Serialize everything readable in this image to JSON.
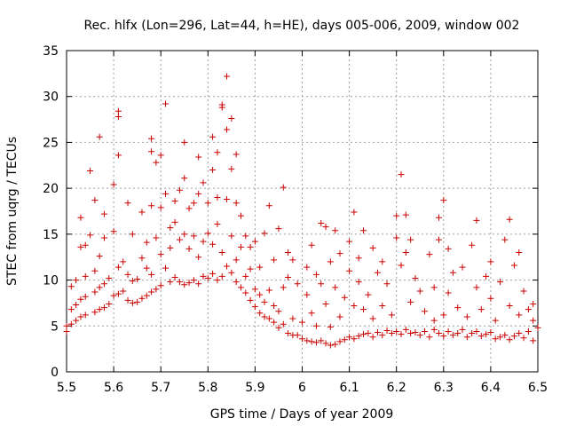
{
  "chart_data": {
    "type": "scatter",
    "title": "Rec. hlfx (Lon=296, Lat=44, h=HE), days 005-006, 2009, window 002",
    "xlabel": "GPS time / Days of year 2009",
    "ylabel": "STEC from uqrg / TECUs",
    "xlim": [
      5.5,
      6.5
    ],
    "ylim": [
      0,
      35
    ],
    "xticks": [
      "5.5",
      "5.6",
      "5.7",
      "5.8",
      "5.9",
      "6",
      "6.1",
      "6.2",
      "6.3",
      "6.4",
      "6.5"
    ],
    "yticks": [
      "0",
      "5",
      "10",
      "15",
      "20",
      "25",
      "30",
      "35"
    ],
    "grid": true,
    "marker": "plus",
    "color": "#cc0000",
    "series": [
      {
        "name": "STEC",
        "points": [
          [
            5.5,
            4.4
          ],
          [
            5.5,
            5.0
          ],
          [
            5.51,
            5.2
          ],
          [
            5.51,
            6.8
          ],
          [
            5.51,
            9.3
          ],
          [
            5.52,
            5.6
          ],
          [
            5.52,
            7.3
          ],
          [
            5.52,
            10.0
          ],
          [
            5.53,
            6.0
          ],
          [
            5.53,
            7.9
          ],
          [
            5.53,
            13.6
          ],
          [
            5.53,
            16.8
          ],
          [
            5.54,
            6.2
          ],
          [
            5.54,
            8.2
          ],
          [
            5.54,
            10.4
          ],
          [
            5.54,
            13.8
          ],
          [
            5.55,
            21.9
          ],
          [
            5.55,
            14.9
          ],
          [
            5.56,
            6.5
          ],
          [
            5.56,
            8.7
          ],
          [
            5.56,
            11.0
          ],
          [
            5.56,
            18.7
          ],
          [
            5.57,
            6.8
          ],
          [
            5.57,
            9.2
          ],
          [
            5.57,
            12.6
          ],
          [
            5.57,
            25.6
          ],
          [
            5.58,
            7.0
          ],
          [
            5.58,
            9.6
          ],
          [
            5.58,
            14.6
          ],
          [
            5.58,
            17.2
          ],
          [
            5.59,
            7.4
          ],
          [
            5.59,
            10.2
          ],
          [
            5.6,
            8.3
          ],
          [
            5.6,
            20.4
          ],
          [
            5.6,
            15.3
          ],
          [
            5.61,
            8.5
          ],
          [
            5.61,
            11.4
          ],
          [
            5.61,
            27.8
          ],
          [
            5.61,
            28.4
          ],
          [
            5.61,
            23.6
          ],
          [
            5.62,
            8.8
          ],
          [
            5.62,
            12.0
          ],
          [
            5.63,
            7.8
          ],
          [
            5.63,
            10.6
          ],
          [
            5.63,
            18.4
          ],
          [
            5.64,
            7.5
          ],
          [
            5.64,
            9.9
          ],
          [
            5.64,
            15.0
          ],
          [
            5.65,
            7.6
          ],
          [
            5.65,
            10.1
          ],
          [
            5.66,
            8.0
          ],
          [
            5.66,
            12.4
          ],
          [
            5.66,
            17.4
          ],
          [
            5.67,
            8.3
          ],
          [
            5.67,
            11.3
          ],
          [
            5.67,
            14.1
          ],
          [
            5.68,
            8.7
          ],
          [
            5.68,
            10.6
          ],
          [
            5.68,
            18.1
          ],
          [
            5.68,
            25.4
          ],
          [
            5.68,
            24.0
          ],
          [
            5.69,
            9.0
          ],
          [
            5.69,
            14.6
          ],
          [
            5.69,
            22.8
          ],
          [
            5.7,
            9.4
          ],
          [
            5.7,
            12.8
          ],
          [
            5.7,
            17.9
          ],
          [
            5.7,
            23.6
          ],
          [
            5.71,
            29.2
          ],
          [
            5.71,
            19.4
          ],
          [
            5.71,
            11.3
          ],
          [
            5.72,
            9.8
          ],
          [
            5.72,
            13.5
          ],
          [
            5.72,
            15.7
          ],
          [
            5.73,
            10.3
          ],
          [
            5.73,
            16.3
          ],
          [
            5.73,
            18.6
          ],
          [
            5.74,
            9.8
          ],
          [
            5.74,
            14.4
          ],
          [
            5.74,
            19.8
          ],
          [
            5.75,
            9.5
          ],
          [
            5.75,
            15.0
          ],
          [
            5.75,
            21.1
          ],
          [
            5.75,
            25.0
          ],
          [
            5.76,
            9.7
          ],
          [
            5.76,
            13.4
          ],
          [
            5.76,
            17.8
          ],
          [
            5.77,
            10.0
          ],
          [
            5.77,
            14.8
          ],
          [
            5.77,
            18.4
          ],
          [
            5.78,
            9.6
          ],
          [
            5.78,
            12.5
          ],
          [
            5.78,
            19.4
          ],
          [
            5.78,
            23.4
          ],
          [
            5.79,
            10.4
          ],
          [
            5.79,
            14.2
          ],
          [
            5.79,
            20.6
          ],
          [
            5.8,
            10.2
          ],
          [
            5.8,
            15.1
          ],
          [
            5.8,
            18.4
          ],
          [
            5.81,
            10.7
          ],
          [
            5.81,
            13.9
          ],
          [
            5.81,
            22.0
          ],
          [
            5.81,
            25.6
          ],
          [
            5.82,
            10.0
          ],
          [
            5.82,
            16.1
          ],
          [
            5.82,
            19.0
          ],
          [
            5.82,
            23.9
          ],
          [
            5.83,
            28.8
          ],
          [
            5.83,
            29.1
          ],
          [
            5.83,
            10.4
          ],
          [
            5.83,
            13.0
          ],
          [
            5.84,
            32.2
          ],
          [
            5.84,
            26.4
          ],
          [
            5.84,
            18.8
          ],
          [
            5.84,
            11.5
          ],
          [
            5.85,
            10.8
          ],
          [
            5.85,
            14.8
          ],
          [
            5.85,
            27.6
          ],
          [
            5.85,
            22.1
          ],
          [
            5.86,
            9.8
          ],
          [
            5.86,
            12.2
          ],
          [
            5.86,
            18.4
          ],
          [
            5.86,
            23.7
          ],
          [
            5.87,
            9.2
          ],
          [
            5.87,
            13.6
          ],
          [
            5.87,
            17.0
          ],
          [
            5.88,
            8.6
          ],
          [
            5.88,
            10.4
          ],
          [
            5.88,
            14.8
          ],
          [
            5.89,
            7.8
          ],
          [
            5.89,
            11.2
          ],
          [
            5.89,
            13.6
          ],
          [
            5.9,
            7.1
          ],
          [
            5.9,
            9.0
          ],
          [
            5.9,
            14.2
          ],
          [
            5.91,
            6.4
          ],
          [
            5.91,
            8.4
          ],
          [
            5.91,
            11.4
          ],
          [
            5.92,
            6.0
          ],
          [
            5.92,
            7.6
          ],
          [
            5.92,
            15.1
          ],
          [
            5.93,
            5.8
          ],
          [
            5.93,
            8.9
          ],
          [
            5.93,
            18.1
          ],
          [
            5.94,
            5.4
          ],
          [
            5.94,
            7.2
          ],
          [
            5.94,
            12.2
          ],
          [
            5.95,
            4.8
          ],
          [
            5.95,
            6.6
          ],
          [
            5.95,
            15.6
          ],
          [
            5.96,
            20.1
          ],
          [
            5.96,
            5.2
          ],
          [
            5.96,
            9.2
          ],
          [
            5.97,
            4.2
          ],
          [
            5.97,
            10.3
          ],
          [
            5.97,
            13.0
          ],
          [
            5.98,
            4.0
          ],
          [
            5.98,
            5.8
          ],
          [
            5.98,
            12.2
          ],
          [
            5.99,
            4.0
          ],
          [
            5.99,
            9.6
          ],
          [
            6.0,
            3.6
          ],
          [
            6.0,
            5.4
          ],
          [
            6.01,
            3.4
          ],
          [
            6.01,
            11.4
          ],
          [
            6.01,
            8.4
          ],
          [
            6.02,
            3.3
          ],
          [
            6.02,
            6.4
          ],
          [
            6.02,
            13.8
          ],
          [
            6.03,
            3.2
          ],
          [
            6.03,
            5.0
          ],
          [
            6.03,
            10.6
          ],
          [
            6.04,
            3.4
          ],
          [
            6.04,
            9.6
          ],
          [
            6.04,
            16.2
          ],
          [
            6.05,
            3.1
          ],
          [
            6.05,
            7.4
          ],
          [
            6.05,
            15.8
          ],
          [
            6.06,
            2.9
          ],
          [
            6.06,
            4.9
          ],
          [
            6.06,
            12.0
          ],
          [
            6.07,
            3.0
          ],
          [
            6.07,
            9.2
          ],
          [
            6.07,
            15.4
          ],
          [
            6.08,
            3.3
          ],
          [
            6.08,
            6.0
          ],
          [
            6.08,
            12.9
          ],
          [
            6.09,
            3.5
          ],
          [
            6.09,
            8.1
          ],
          [
            6.1,
            3.8
          ],
          [
            6.1,
            14.2
          ],
          [
            6.1,
            11.0
          ],
          [
            6.11,
            3.6
          ],
          [
            6.11,
            17.4
          ],
          [
            6.11,
            7.2
          ],
          [
            6.12,
            3.9
          ],
          [
            6.12,
            9.8
          ],
          [
            6.12,
            12.4
          ],
          [
            6.13,
            4.1
          ],
          [
            6.13,
            6.8
          ],
          [
            6.13,
            15.4
          ],
          [
            6.14,
            4.2
          ],
          [
            6.14,
            8.4
          ],
          [
            6.15,
            3.8
          ],
          [
            6.15,
            5.8
          ],
          [
            6.15,
            13.5
          ],
          [
            6.16,
            4.3
          ],
          [
            6.16,
            10.8
          ],
          [
            6.17,
            4.0
          ],
          [
            6.17,
            7.2
          ],
          [
            6.17,
            12.0
          ],
          [
            6.18,
            4.5
          ],
          [
            6.18,
            9.6
          ],
          [
            6.19,
            4.2
          ],
          [
            6.19,
            6.2
          ],
          [
            6.2,
            4.4
          ],
          [
            6.2,
            14.6
          ],
          [
            6.2,
            17.0
          ],
          [
            6.21,
            21.5
          ],
          [
            6.21,
            4.1
          ],
          [
            6.21,
            11.6
          ],
          [
            6.22,
            4.6
          ],
          [
            6.22,
            17.1
          ],
          [
            6.22,
            13.0
          ],
          [
            6.23,
            4.2
          ],
          [
            6.23,
            7.6
          ],
          [
            6.23,
            14.4
          ],
          [
            6.24,
            4.3
          ],
          [
            6.24,
            10.2
          ],
          [
            6.25,
            4.0
          ],
          [
            6.25,
            8.8
          ],
          [
            6.26,
            4.4
          ],
          [
            6.26,
            6.6
          ],
          [
            6.27,
            3.8
          ],
          [
            6.27,
            12.8
          ],
          [
            6.28,
            4.6
          ],
          [
            6.28,
            5.6
          ],
          [
            6.28,
            9.2
          ],
          [
            6.29,
            4.2
          ],
          [
            6.29,
            16.8
          ],
          [
            6.29,
            14.4
          ],
          [
            6.3,
            3.9
          ],
          [
            6.3,
            6.2
          ],
          [
            6.3,
            18.7
          ],
          [
            6.31,
            4.4
          ],
          [
            6.31,
            8.6
          ],
          [
            6.31,
            13.4
          ],
          [
            6.32,
            4.0
          ],
          [
            6.32,
            10.8
          ],
          [
            6.33,
            4.2
          ],
          [
            6.33,
            7.0
          ],
          [
            6.34,
            4.6
          ],
          [
            6.34,
            11.4
          ],
          [
            6.35,
            3.8
          ],
          [
            6.35,
            6.0
          ],
          [
            6.36,
            4.2
          ],
          [
            6.36,
            13.8
          ],
          [
            6.37,
            4.4
          ],
          [
            6.37,
            9.2
          ],
          [
            6.37,
            16.5
          ],
          [
            6.38,
            3.9
          ],
          [
            6.38,
            6.8
          ],
          [
            6.39,
            4.1
          ],
          [
            6.39,
            10.4
          ],
          [
            6.4,
            4.3
          ],
          [
            6.4,
            8.0
          ],
          [
            6.4,
            12.0
          ],
          [
            6.41,
            3.6
          ],
          [
            6.41,
            5.6
          ],
          [
            6.42,
            3.8
          ],
          [
            6.42,
            9.8
          ],
          [
            6.43,
            4.0
          ],
          [
            6.43,
            14.4
          ],
          [
            6.44,
            3.5
          ],
          [
            6.44,
            7.2
          ],
          [
            6.44,
            16.6
          ],
          [
            6.45,
            3.9
          ],
          [
            6.45,
            11.6
          ],
          [
            6.46,
            4.2
          ],
          [
            6.46,
            6.2
          ],
          [
            6.46,
            13.0
          ],
          [
            6.47,
            3.7
          ],
          [
            6.47,
            8.8
          ],
          [
            6.48,
            4.4
          ],
          [
            6.48,
            6.8
          ],
          [
            6.49,
            3.4
          ],
          [
            6.49,
            5.6
          ],
          [
            6.49,
            7.4
          ],
          [
            6.5,
            4.8
          ]
        ]
      }
    ]
  }
}
